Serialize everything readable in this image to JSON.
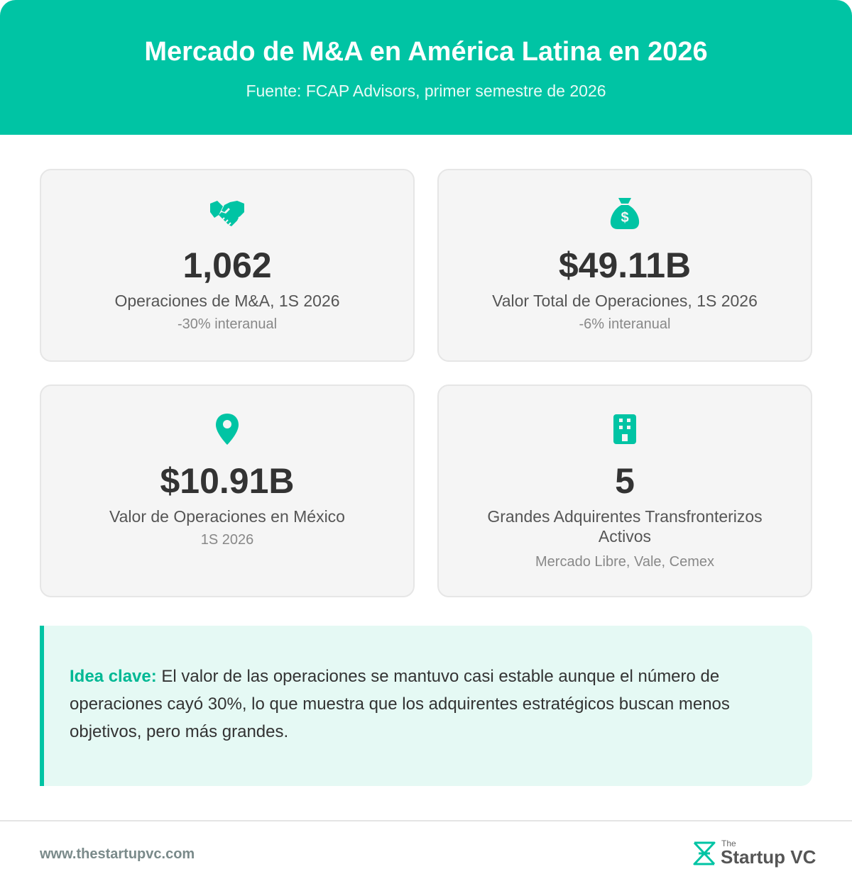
{
  "header": {
    "title": "Mercado de M&A en América Latina en 2026",
    "subtitle": "Fuente: FCAP Advisors, primer semestre de 2026"
  },
  "cards": [
    {
      "icon": "handshake-icon",
      "value": "1,062",
      "label": "Operaciones de M&A, 1S 2026",
      "note": "-30% interanual"
    },
    {
      "icon": "money-bag-icon",
      "value": "$49.11B",
      "label": "Valor Total de Operaciones, 1S 2026",
      "note": "-6% interanual"
    },
    {
      "icon": "location-pin-icon",
      "value": "$10.91B",
      "label": "Valor de Operaciones en México",
      "note": "1S 2026"
    },
    {
      "icon": "building-icon",
      "value": "5",
      "label": "Grandes Adquirentes Transfronterizos Activos",
      "note": "Mercado Libre, Vale, Cemex"
    }
  ],
  "insight": {
    "lead": "Idea clave:",
    "text": " El valor de las operaciones se mantuvo casi estable aunque el número de operaciones cayó 30%, lo que muestra que los adquirentes estratégicos buscan menos objetivos, pero más grandes."
  },
  "footer": {
    "url": "www.thestartupvc.com",
    "brand_small": "The",
    "brand_name": "Startup VC"
  },
  "colors": {
    "accent": "#00c4a4",
    "card_bg": "#f5f5f5",
    "insight_bg": "#e5f9f4"
  }
}
